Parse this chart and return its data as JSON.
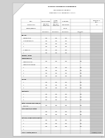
{
  "title1": "CLINICAL PATHWAYS PUSKESMAS",
  "title2": "UPTD PUSKESMAS BEMBAN",
  "title3": "KABUPATEN SIAK INHIL, PROVINSI RIAU, STANDAR",
  "page_bg": "#d0d0d0",
  "paper_color": "#ffffff",
  "line_color": "#aaaaaa",
  "section_bg": "#e8e8e8",
  "gray_col": "#c8c8c8",
  "dark_gray_col": "#b0b0b0",
  "text_color": "#222222",
  "fold_color": "#e0e0e0"
}
